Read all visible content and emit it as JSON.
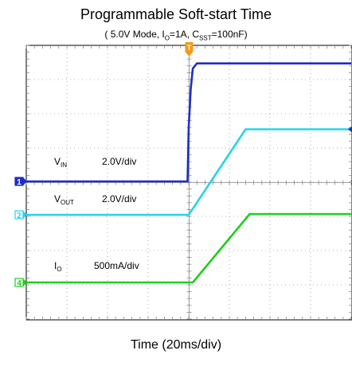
{
  "chart_data": {
    "type": "line",
    "title": "Programmable Soft-start Time",
    "subtitle": {
      "mode": "5.0V Mode",
      "io_label": "I",
      "io_sub": "O",
      "io_value": "=1A",
      "css_label": "C",
      "css_sub": "SST",
      "css_value": "=100nF"
    },
    "xlabel": "Time (20ms/div)",
    "x_unit": "ms",
    "xlim": [
      -40,
      40
    ],
    "divisions": {
      "x": 8,
      "y": 8
    },
    "trigger_marker": "T",
    "grid": true,
    "series": [
      {
        "name_main": "V",
        "name_sub": "IN",
        "scale": "2.0V/div",
        "channel": "1",
        "color": "#1f2ec8",
        "x": [
          -40,
          -0.3,
          0,
          0.5,
          1,
          2,
          4,
          40
        ],
        "y_div": [
          0,
          0,
          1.6,
          2.7,
          3.3,
          3.45,
          3.45,
          3.45
        ]
      },
      {
        "name_main": "V",
        "name_sub": "OUT",
        "scale": "2.0V/div",
        "channel": "2",
        "color": "#27d3e8",
        "x": [
          -40,
          0,
          14,
          40
        ],
        "y_div": [
          0,
          0,
          2.5,
          2.5
        ]
      },
      {
        "name_main": "I",
        "name_sub": "O",
        "scale": "500mA/div",
        "channel": "4",
        "color": "#22cc22",
        "x": [
          -40,
          1,
          15,
          40
        ],
        "y_div": [
          0,
          0,
          2,
          2
        ]
      }
    ]
  }
}
